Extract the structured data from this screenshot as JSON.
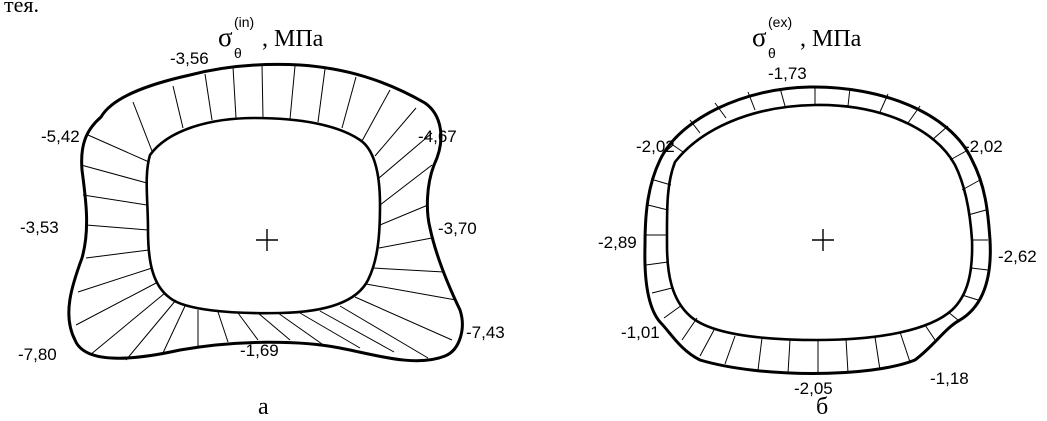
{
  "top_text": "тея.",
  "panels": [
    {
      "id": "a",
      "title": {
        "symbol": "σ",
        "superscript": "(in)",
        "subscript": "θ",
        "unit": ", МПа"
      },
      "caption": "а",
      "labels": [
        "-3,56",
        "-5,42",
        "-4,67",
        "-3,53",
        "-3,70",
        "-7,80",
        "-7,43",
        "-1,69"
      ]
    },
    {
      "id": "b",
      "title": {
        "symbol": "σ",
        "superscript": "(ex)",
        "subscript": "θ",
        "unit": ", МПа"
      },
      "caption": "б",
      "labels": [
        "-1,73",
        "-2,02",
        "-2,02",
        "-2,89",
        "-2,62",
        "-1,01",
        "-1,18",
        "-2,05"
      ]
    }
  ]
}
